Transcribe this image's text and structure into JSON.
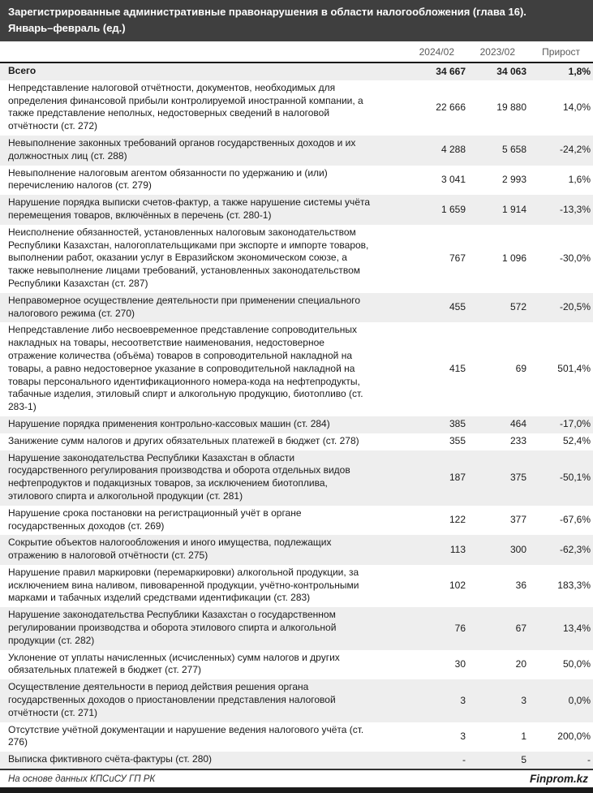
{
  "title": {
    "line1": "Зарегистрированные административные правонарушения в области налогообложения (глава 16).",
    "line2": "Январь–февраль (ед.)"
  },
  "columns": [
    "2024/02",
    "2023/02",
    "Прирост"
  ],
  "footer": {
    "source": "На основе данных КПСиСУ ГП РК",
    "brand": "Finprom.kz"
  },
  "colors": {
    "title_bar_bg": "#3f3f3f",
    "stripe_bg": "#eeeeee",
    "header_text": "#595959",
    "rule": "#1a1a1a"
  },
  "chart_data": {
    "type": "table",
    "title": "Зарегистрированные административные правонарушения в области налогообложения (глава 16). Январь–февраль (ед.)",
    "columns": [
      "",
      "2024/02",
      "2023/02",
      "Прирост"
    ],
    "rows": [
      {
        "label": "Всего",
        "v2024": "34 667",
        "v2023": "34 063",
        "growth": "1,8%",
        "bold": true
      },
      {
        "label": "Непредставление налоговой отчётности, документов, необходимых для определения финансовой прибыли контролируемой иностранной компании, а также представление неполных, недостоверных сведений в налоговой отчётности (ст. 272)",
        "v2024": "22 666",
        "v2023": "19 880",
        "growth": "14,0%"
      },
      {
        "label": "Невыполнение законных требований органов государственных доходов и их должностных лиц (ст. 288)",
        "v2024": "4 288",
        "v2023": "5 658",
        "growth": "-24,2%"
      },
      {
        "label": "Невыполнение налоговым агентом обязанности по удержанию и (или) перечислению налогов (ст. 279)",
        "v2024": "3 041",
        "v2023": "2 993",
        "growth": "1,6%"
      },
      {
        "label": "Нарушение порядка выписки счетов-фактур, а также нарушение системы учёта перемещения товаров, включённых в перечень (ст. 280-1)",
        "v2024": "1 659",
        "v2023": "1 914",
        "growth": "-13,3%"
      },
      {
        "label": "Неисполнение обязанностей, установленных налоговым законодательством Республики Казахстан, налогоплательщиками при экспорте и импорте товаров, выполнении работ, оказании услуг в Евразийском экономическом союзе, а также невыполнение лицами требований, установленных законодательством Республики Казахстан (ст. 287)",
        "v2024": "767",
        "v2023": "1 096",
        "growth": "-30,0%"
      },
      {
        "label": "Неправомерное осуществление деятельности при применении специального налогового режима (ст. 270)",
        "v2024": "455",
        "v2023": "572",
        "growth": "-20,5%"
      },
      {
        "label": "Непредставление либо несвоевременное представление сопроводительных накладных на товары, несоответствие наименования, недостоверное отражение количества (объёма) товаров в сопроводительной накладной на товары, а равно недостоверное указание в сопроводительной накладной на товары персонального идентификационного номера-кода на нефтепродукты, табачные изделия, этиловый спирт и алкогольную продукцию, биотопливо (ст. 283-1)",
        "v2024": "415",
        "v2023": "69",
        "growth": "501,4%"
      },
      {
        "label": "Нарушение порядка применения контрольно-кассовых машин (ст. 284)",
        "v2024": "385",
        "v2023": "464",
        "growth": "-17,0%"
      },
      {
        "label": "Занижение сумм налогов и других обязательных платежей в бюджет (ст. 278)",
        "v2024": "355",
        "v2023": "233",
        "growth": "52,4%"
      },
      {
        "label": "Нарушение законодательства Республики Казахстан в области государственного регулирования производства и оборота отдельных видов нефтепродуктов и подакцизных товаров, за исключением биотоплива, этилового спирта и алкогольной продукции (ст. 281)",
        "v2024": "187",
        "v2023": "375",
        "growth": "-50,1%"
      },
      {
        "label": "Нарушение срока постановки на регистрационный учёт в органе государственных доходов (ст. 269)",
        "v2024": "122",
        "v2023": "377",
        "growth": "-67,6%"
      },
      {
        "label": "Сокрытие объектов налогообложения и иного имущества, подлежащих отражению в налоговой отчётности (ст. 275)",
        "v2024": "113",
        "v2023": "300",
        "growth": "-62,3%"
      },
      {
        "label": "Нарушение правил маркировки (перемаркировки) алкогольной продукции, за исключением вина наливом, пивоваренной продукции, учётно-контрольными марками и табачных изделий средствами идентификации (ст. 283)",
        "v2024": "102",
        "v2023": "36",
        "growth": "183,3%"
      },
      {
        "label": "Нарушение законодательства Республики Казахстан о государственном регулировании производства и оборота этилового спирта и алкогольной продукции (ст. 282)",
        "v2024": "76",
        "v2023": "67",
        "growth": "13,4%"
      },
      {
        "label": "Уклонение от уплаты начисленных (исчисленных) сумм налогов и других обязательных платежей в бюджет (ст. 277)",
        "v2024": "30",
        "v2023": "20",
        "growth": "50,0%"
      },
      {
        "label": "Осуществление деятельности в период действия решения органа государственных доходов о приостановлении представления налоговой отчётности (ст. 271)",
        "v2024": "3",
        "v2023": "3",
        "growth": "0,0%"
      },
      {
        "label": "Отсутствие учётной документации и нарушение ведения налогового учёта (ст. 276)",
        "v2024": "3",
        "v2023": "1",
        "growth": "200,0%"
      },
      {
        "label": "Выписка фиктивного счёта-фактуры (ст. 280)",
        "v2024": "-",
        "v2023": "5",
        "growth": "-"
      }
    ]
  }
}
